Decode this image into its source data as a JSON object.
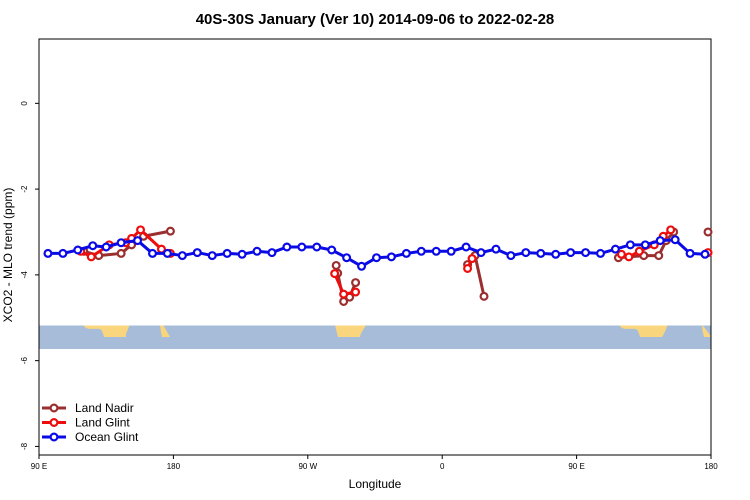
{
  "chart_data": {
    "type": "line",
    "title": "40S-30S January (Ver 10)   2014-09-06 to 2022-02-28",
    "xlabel": "Longitude",
    "ylabel": "XCO2 - MLO trend (ppm)",
    "xlim": [
      0,
      450
    ],
    "ylim": [
      -8.2,
      1.5
    ],
    "x_ticks": [
      {
        "value": 0,
        "label": "90 E"
      },
      {
        "value": 90,
        "label": "180"
      },
      {
        "value": 180,
        "label": "90 W"
      },
      {
        "value": 270,
        "label": "0"
      },
      {
        "value": 360,
        "label": "90 E"
      },
      {
        "value": 450,
        "label": "180"
      }
    ],
    "y_ticks": [
      {
        "value": 0,
        "label": "0"
      },
      {
        "value": -2,
        "label": "-2"
      },
      {
        "value": -4,
        "label": "-4"
      },
      {
        "value": -6,
        "label": "-6"
      },
      {
        "value": -8,
        "label": "-8"
      }
    ],
    "map_strip": {
      "y_top": -5.18,
      "y_bottom": -5.73,
      "ocean_color": "#a7bcd8",
      "land_color": "#f9d67e"
    },
    "legend_position": "bottom-left",
    "series": [
      {
        "name": "Land Nadir",
        "color": "#9b2f2f",
        "segments": [
          [
            [
              30,
              -3.45
            ],
            [
              40,
              -3.55
            ],
            [
              55,
              -3.5
            ],
            [
              62,
              -3.3
            ],
            [
              70,
              -3.1
            ],
            [
              88,
              -2.98
            ]
          ],
          [
            [
              199,
              -3.78
            ],
            [
              200,
              -3.96
            ],
            [
              204,
              -4.62
            ],
            [
              208,
              -4.52
            ],
            [
              212,
              -4.18
            ]
          ],
          [
            [
              287,
              -3.76
            ],
            [
              292,
              -3.55
            ],
            [
              298,
              -4.5
            ]
          ],
          [
            [
              388,
              -3.6
            ],
            [
              405,
              -3.55
            ],
            [
              415,
              -3.55
            ],
            [
              420,
              -3.2
            ],
            [
              425,
              -3.0
            ]
          ],
          [
            [
              448,
              -3.0
            ]
          ]
        ]
      },
      {
        "name": "Land Glint",
        "color": "#ee0d0d",
        "segments": [
          [
            [
              28,
              -3.45
            ],
            [
              35,
              -3.58
            ],
            [
              47,
              -3.3
            ],
            [
              58,
              -3.25
            ],
            [
              62,
              -3.15
            ],
            [
              68,
              -2.95
            ],
            [
              82,
              -3.4
            ],
            [
              88,
              -3.5
            ]
          ],
          [
            [
              198,
              -3.97
            ],
            [
              204,
              -4.45
            ],
            [
              212,
              -4.4
            ]
          ],
          [
            [
              287,
              -3.85
            ],
            [
              290,
              -3.62
            ]
          ],
          [
            [
              390,
              -3.52
            ],
            [
              395,
              -3.58
            ],
            [
              402,
              -3.45
            ],
            [
              412,
              -3.3
            ],
            [
              418,
              -3.1
            ],
            [
              423,
              -2.95
            ]
          ],
          [
            [
              448,
              -3.48
            ]
          ]
        ]
      },
      {
        "name": "Ocean Glint",
        "color": "#0a0ae6",
        "segments": [
          [
            [
              6,
              -3.5
            ],
            [
              16,
              -3.5
            ],
            [
              26,
              -3.42
            ],
            [
              36,
              -3.32
            ],
            [
              45,
              -3.35
            ],
            [
              55,
              -3.25
            ],
            [
              66,
              -3.2
            ],
            [
              76,
              -3.5
            ],
            [
              86,
              -3.5
            ],
            [
              96,
              -3.55
            ],
            [
              106,
              -3.48
            ],
            [
              116,
              -3.55
            ],
            [
              126,
              -3.5
            ],
            [
              136,
              -3.52
            ],
            [
              146,
              -3.45
            ],
            [
              156,
              -3.48
            ],
            [
              166,
              -3.35
            ],
            [
              176,
              -3.35
            ],
            [
              186,
              -3.35
            ],
            [
              196,
              -3.42
            ],
            [
              206,
              -3.6
            ],
            [
              216,
              -3.8
            ],
            [
              226,
              -3.6
            ],
            [
              236,
              -3.58
            ],
            [
              246,
              -3.5
            ],
            [
              256,
              -3.45
            ],
            [
              266,
              -3.45
            ],
            [
              276,
              -3.45
            ],
            [
              286,
              -3.35
            ],
            [
              296,
              -3.48
            ],
            [
              306,
              -3.4
            ],
            [
              316,
              -3.55
            ],
            [
              326,
              -3.48
            ],
            [
              336,
              -3.5
            ],
            [
              346,
              -3.52
            ],
            [
              356,
              -3.48
            ],
            [
              366,
              -3.48
            ],
            [
              376,
              -3.5
            ],
            [
              386,
              -3.4
            ],
            [
              396,
              -3.3
            ],
            [
              406,
              -3.3
            ],
            [
              416,
              -3.2
            ],
            [
              426,
              -3.18
            ],
            [
              436,
              -3.5
            ],
            [
              446,
              -3.52
            ]
          ]
        ]
      }
    ]
  }
}
